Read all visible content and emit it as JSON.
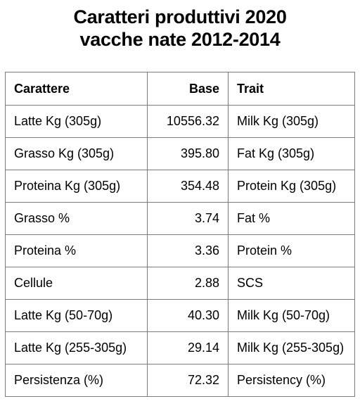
{
  "title": {
    "line1": "Caratteri produttivi 2020",
    "line2": "vacche nate 2012-2014"
  },
  "table": {
    "headers": [
      "Carattere",
      "Base",
      "Trait"
    ],
    "rows": [
      [
        "Latte Kg (305g)",
        "10556.32",
        "Milk Kg (305g)"
      ],
      [
        "Grasso Kg (305g)",
        "395.80",
        "Fat Kg (305g)"
      ],
      [
        "Proteina Kg (305g)",
        "354.48",
        "Protein Kg (305g)"
      ],
      [
        "Grasso %",
        "3.74",
        "Fat %"
      ],
      [
        "Proteina %",
        "3.36",
        "Protein %"
      ],
      [
        "Cellule",
        "2.88",
        "SCS"
      ],
      [
        "Latte Kg (50-70g)",
        "40.30",
        "Milk Kg (50-70g)"
      ],
      [
        "Latte Kg (255-305g)",
        "29.14",
        "Milk Kg (255-305g)"
      ],
      [
        "Persistenza (%)",
        "72.32",
        "Persistency (%)"
      ]
    ]
  }
}
